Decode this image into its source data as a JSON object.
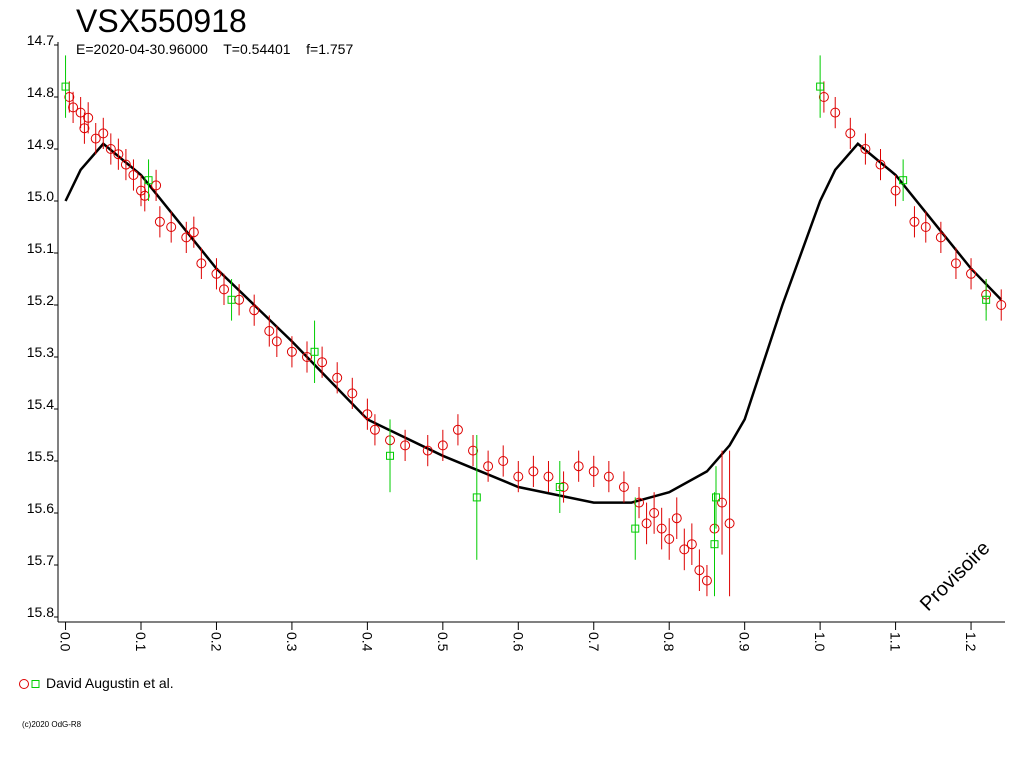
{
  "chart_data": {
    "type": "scatter",
    "title": "VSX550918",
    "subtitle": "E=2020-04-30.96000    T=0.54401    f=1.757",
    "annotation": "Provisoire",
    "footer": "(c)2020 OdG-R8",
    "legend": {
      "label": "David Augustin et al.",
      "position": "bottom-left"
    },
    "xlim": [
      -0.01,
      1.245
    ],
    "ylim": [
      15.8,
      14.7
    ],
    "y_inverted": true,
    "xticks": [
      {
        "value": 0,
        "label": "0.0"
      },
      0.1,
      0.2,
      0.3,
      0.4,
      0.5,
      0.6,
      0.7,
      0.8,
      0.9,
      {
        "value": 1,
        "label": "1.0"
      },
      1.1,
      1.2
    ],
    "yticks": [
      14.7,
      14.8,
      14.9,
      {
        "value": 15,
        "label": "15.0"
      },
      15.1,
      15.2,
      15.3,
      15.4,
      15.5,
      15.6,
      15.7,
      15.8
    ],
    "model": {
      "color": "#000000",
      "x": [
        0,
        0.02,
        0.05,
        0.1,
        0.15,
        0.2,
        0.3,
        0.4,
        0.5,
        0.6,
        0.7,
        0.75,
        0.8,
        0.85,
        0.88,
        0.9,
        0.95,
        1,
        1.02,
        1.05,
        1.1,
        1.15,
        1.2,
        1.24
      ],
      "y": [
        15,
        14.94,
        14.89,
        14.95,
        15.04,
        15.13,
        15.27,
        15.42,
        15.49,
        15.55,
        15.58,
        15.58,
        15.56,
        15.52,
        15.47,
        15.42,
        15.2,
        15,
        14.94,
        14.89,
        14.95,
        15.04,
        15.13,
        15.19
      ]
    },
    "series": [
      {
        "color": "#dd0000",
        "marker": "circle",
        "x": [
          0.005,
          0.01,
          0.02,
          0.025,
          0.03,
          0.04,
          0.05,
          0.06,
          0.07,
          0.08,
          0.09,
          0.1,
          0.105,
          0.12,
          0.125,
          0.14,
          0.16,
          0.17,
          0.18,
          0.2,
          0.21,
          0.23,
          0.25,
          0.27,
          0.28,
          0.3,
          0.32,
          0.34,
          0.36,
          0.38,
          0.4,
          0.41,
          0.43,
          0.45,
          0.48,
          0.5,
          0.52,
          0.54,
          0.56,
          0.58,
          0.6,
          0.62,
          0.64,
          0.66,
          0.68,
          0.7,
          0.72,
          0.74,
          0.76,
          0.77,
          0.78,
          0.79,
          0.8,
          0.81,
          0.82,
          0.83,
          0.84,
          0.85,
          0.86,
          0.87,
          0.88,
          1.005,
          1.02,
          1.04,
          1.06,
          1.08,
          1.1,
          1.125,
          1.14,
          1.16,
          1.18,
          1.2,
          1.22,
          1.24
        ],
        "y": [
          14.8,
          14.82,
          14.83,
          14.86,
          14.84,
          14.88,
          14.87,
          14.9,
          14.91,
          14.93,
          14.95,
          14.98,
          14.99,
          14.97,
          15.04,
          15.05,
          15.07,
          15.06,
          15.12,
          15.14,
          15.17,
          15.19,
          15.21,
          15.25,
          15.27,
          15.29,
          15.3,
          15.31,
          15.34,
          15.37,
          15.41,
          15.44,
          15.46,
          15.47,
          15.48,
          15.47,
          15.44,
          15.48,
          15.51,
          15.5,
          15.53,
          15.52,
          15.53,
          15.55,
          15.51,
          15.52,
          15.53,
          15.55,
          15.58,
          15.62,
          15.6,
          15.63,
          15.65,
          15.61,
          15.67,
          15.66,
          15.71,
          15.73,
          15.63,
          15.58,
          15.62,
          14.8,
          14.83,
          14.87,
          14.9,
          14.93,
          14.98,
          15.04,
          15.05,
          15.07,
          15.12,
          15.14,
          15.18,
          15.2
        ],
        "err": [
          0.03,
          0.03,
          0.03,
          0.03,
          0.03,
          0.03,
          0.03,
          0.03,
          0.03,
          0.03,
          0.03,
          0.03,
          0.03,
          0.03,
          0.03,
          0.03,
          0.03,
          0.03,
          0.03,
          0.03,
          0.03,
          0.03,
          0.03,
          0.03,
          0.03,
          0.03,
          0.03,
          0.03,
          0.03,
          0.03,
          0.03,
          0.03,
          0.03,
          0.03,
          0.03,
          0.03,
          0.03,
          0.03,
          0.03,
          0.03,
          0.03,
          0.03,
          0.03,
          0.03,
          0.03,
          0.03,
          0.03,
          0.03,
          0.03,
          0.04,
          0.04,
          0.04,
          0.04,
          0.04,
          0.04,
          0.04,
          0.04,
          0.03,
          0.06,
          0.1,
          0.14,
          0.03,
          0.03,
          0.03,
          0.03,
          0.03,
          0.03,
          0.03,
          0.03,
          0.03,
          0.03,
          0.03,
          0.03,
          0.03
        ]
      },
      {
        "color": "#00cc00",
        "marker": "square",
        "x": [
          0,
          0.11,
          0.22,
          0.33,
          0.43,
          0.545,
          0.655,
          0.755,
          0.86,
          0.862,
          1,
          1.11,
          1.22
        ],
        "y": [
          14.78,
          14.96,
          15.19,
          15.29,
          15.49,
          15.57,
          15.55,
          15.63,
          15.66,
          15.57,
          14.78,
          14.96,
          15.19
        ],
        "err": [
          0.06,
          0.04,
          0.04,
          0.06,
          0.07,
          0.12,
          0.05,
          0.06,
          0.1,
          0.06,
          0.06,
          0.04,
          0.04
        ]
      }
    ]
  }
}
